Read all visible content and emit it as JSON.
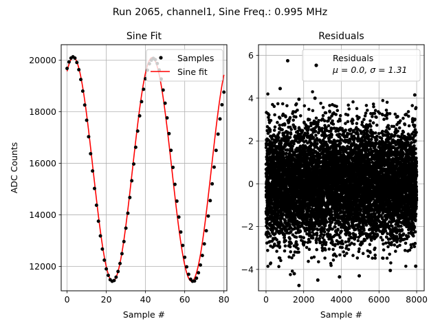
{
  "figure": {
    "suptitle": "Run 2065, channel1, Sine Freq.: 0.995 MHz"
  },
  "chart_data": [
    {
      "type": "line",
      "title": "Sine Fit",
      "xlabel": "Sample #",
      "ylabel": "ADC Counts",
      "xlim": [
        -3,
        81.5
      ],
      "ylim": [
        11050,
        20600
      ],
      "xticks": [
        0,
        20,
        40,
        60,
        80
      ],
      "yticks": [
        12000,
        14000,
        16000,
        18000,
        20000
      ],
      "grid": true,
      "legend_position": "upper right",
      "series": [
        {
          "name": "Samples",
          "kind": "scatter",
          "color": "#000000",
          "x": [
            0,
            1,
            2,
            3,
            4,
            5,
            6,
            7,
            8,
            9,
            10,
            11,
            12,
            13,
            14,
            15,
            16,
            17,
            18,
            19,
            20,
            21,
            22,
            23,
            24,
            25,
            26,
            27,
            28,
            29,
            30,
            31,
            32,
            33,
            34,
            35,
            36,
            37,
            38,
            39,
            40,
            41,
            42,
            43,
            44,
            45,
            46,
            47,
            48,
            49,
            50,
            51,
            52,
            53,
            54,
            55,
            56,
            57,
            58,
            59,
            60,
            61,
            62,
            63,
            64,
            65,
            66,
            67,
            68,
            69,
            70,
            71,
            72,
            73,
            74,
            75,
            76,
            77,
            78,
            79,
            80
          ],
          "y": [
            19680,
            19930,
            20080,
            20130,
            20080,
            19910,
            19630,
            19250,
            18800,
            18260,
            17670,
            17030,
            16370,
            15700,
            15020,
            14370,
            13750,
            13180,
            12670,
            12240,
            11900,
            11650,
            11480,
            11420,
            11450,
            11580,
            11800,
            12110,
            12490,
            12960,
            13480,
            14060,
            14670,
            15320,
            15970,
            16620,
            17250,
            17840,
            18390,
            18870,
            19280,
            19610,
            19860,
            20000,
            20070,
            20020,
            19870,
            19620,
            19270,
            18840,
            18330,
            17760,
            17150,
            16500,
            15840,
            15180,
            14530,
            13910,
            13330,
            12810,
            12350,
            11980,
            11690,
            11500,
            11420,
            11430,
            11540,
            11750,
            12050,
            12420,
            12870,
            13380,
            13950,
            14550,
            15200,
            15850,
            16500,
            17130,
            17720,
            18270,
            18760
          ]
        },
        {
          "name": "Sine fit",
          "kind": "line",
          "color": "#ff0000",
          "function": {
            "amplitude": 4340,
            "offset": 15760,
            "period": 40.2,
            "peak_at": 3.2,
            "x_range": [
              0,
              80
            ]
          }
        }
      ]
    },
    {
      "type": "scatter",
      "title": "Residuals",
      "xlabel": "Sample #",
      "ylabel": "",
      "xlim": [
        -400,
        8400
      ],
      "ylim": [
        -5.0,
        6.5
      ],
      "xticks": [
        0,
        2000,
        4000,
        6000,
        8000
      ],
      "yticks": [
        -4,
        -2,
        0,
        2,
        4,
        6
      ],
      "grid": true,
      "legend_position": "upper right",
      "series": [
        {
          "name": "Residuals",
          "legend_lines": [
            "Residuals",
            "μ = 0.0, σ = 1.31"
          ],
          "color": "#000000",
          "n_points": 8000,
          "mean": 0.0,
          "std": 1.31,
          "x_range": [
            0,
            7999
          ],
          "outliers": [
            {
              "x": 1150,
              "y": 5.75
            },
            {
              "x": 750,
              "y": 4.45
            },
            {
              "x": 1750,
              "y": 3.95
            },
            {
              "x": 2600,
              "y": 4.0
            },
            {
              "x": 7900,
              "y": 4.15
            },
            {
              "x": 1750,
              "y": -4.75
            },
            {
              "x": 2750,
              "y": -4.5
            },
            {
              "x": 4950,
              "y": -4.3
            },
            {
              "x": 3900,
              "y": -4.35
            },
            {
              "x": 1500,
              "y": -4.2
            },
            {
              "x": 6600,
              "y": -4.05
            },
            {
              "x": 7950,
              "y": -3.85
            }
          ]
        }
      ]
    }
  ]
}
